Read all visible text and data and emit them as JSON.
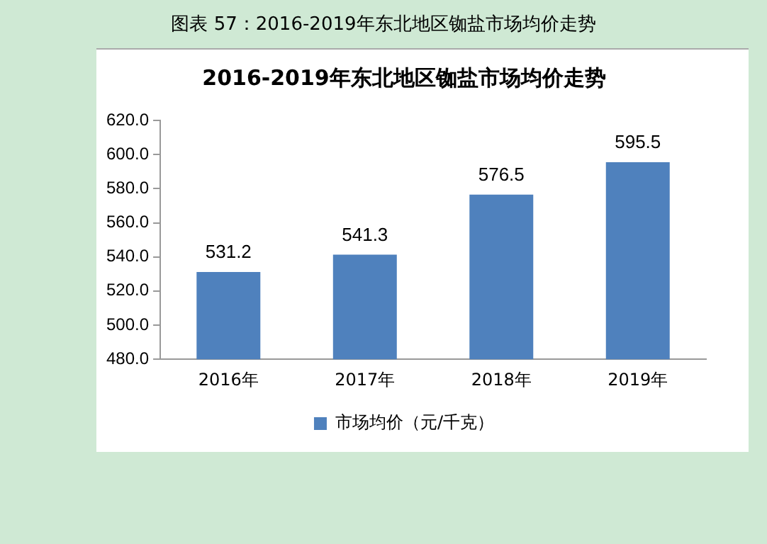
{
  "chart_data": {
    "type": "bar",
    "title": "2016-2019年东北地区铷盐市场均价走势",
    "annotations": [
      "图表 57：2016-2019年东北地区铷盐市场均价走势"
    ],
    "categories": [
      "2016年",
      "2017年",
      "2018年",
      "2019年"
    ],
    "series": [
      {
        "name": "市场均价（元/千克）",
        "color": "#4f81bd",
        "values": [
          531.2,
          541.3,
          576.5,
          595.5
        ]
      }
    ],
    "ylim": [
      480,
      620
    ],
    "yticks": [
      {
        "value": 480,
        "label": "480.0"
      },
      {
        "value": 500,
        "label": "500.0"
      },
      {
        "value": 520,
        "label": "520.0"
      },
      {
        "value": 540,
        "label": "540.0"
      },
      {
        "value": 560,
        "label": "560.0"
      },
      {
        "value": 580,
        "label": "580.0"
      },
      {
        "value": 600,
        "label": "600.0"
      },
      {
        "value": 620,
        "label": "620.0"
      }
    ],
    "data_labels": true,
    "legend": "bottom"
  }
}
